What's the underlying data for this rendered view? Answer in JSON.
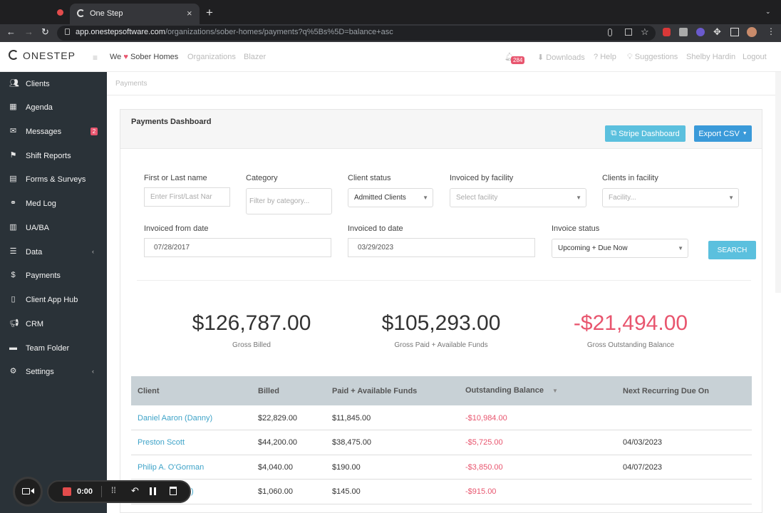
{
  "browser": {
    "tab_title": "One Step",
    "url_host": "app.onestepsoftware.com",
    "url_path": "/organizations/sober-homes/payments?q%5Bs%5D=balance+asc"
  },
  "header": {
    "logo": "ONESTEP",
    "org_prefix": "We",
    "org_name": "Sober Homes",
    "links": [
      "Organizations",
      "Blazer"
    ],
    "notification_count": "284",
    "right_links": [
      "Downloads",
      "Help",
      "Suggestions",
      "Shelby Hardin",
      "Logout"
    ]
  },
  "sidebar": {
    "items": [
      {
        "label": "Clients",
        "icon": "users-icon"
      },
      {
        "label": "Agenda",
        "icon": "calendar-icon"
      },
      {
        "label": "Messages",
        "icon": "envelope-icon",
        "badge": "2"
      },
      {
        "label": "Shift Reports",
        "icon": "flag-icon"
      },
      {
        "label": "Forms & Surveys",
        "icon": "file-icon"
      },
      {
        "label": "Med Log",
        "icon": "pills-icon"
      },
      {
        "label": "UA/BA",
        "icon": "cup-icon"
      },
      {
        "label": "Data",
        "icon": "database-icon",
        "arrow": true
      },
      {
        "label": "Payments",
        "icon": "dollar-icon"
      },
      {
        "label": "Client App Hub",
        "icon": "mobile-icon"
      },
      {
        "label": "CRM",
        "icon": "megaphone-icon"
      },
      {
        "label": "Team Folder",
        "icon": "folder-icon"
      },
      {
        "label": "Settings",
        "icon": "gear-icon",
        "arrow": true
      }
    ]
  },
  "breadcrumb": "Payments",
  "dashboard": {
    "title": "Payments Dashboard",
    "stripe_button": "Stripe Dashboard",
    "export_button": "Export CSV"
  },
  "filters": {
    "name_label": "First or Last name",
    "name_placeholder": "Enter First/Last Nar",
    "category_label": "Category",
    "category_placeholder": "Filter by category...",
    "client_status_label": "Client status",
    "client_status_value": "Admitted Clients",
    "invoiced_by_label": "Invoiced by facility",
    "invoiced_by_placeholder": "Select facility",
    "clients_in_label": "Clients in facility",
    "clients_in_placeholder": "Facility...",
    "from_label": "Invoiced from date",
    "from_value": "07/28/2017",
    "to_label": "Invoiced to date",
    "to_value": "03/29/2023",
    "invoice_status_label": "Invoice status",
    "invoice_status_value": "Upcoming + Due Now",
    "search_button": "SEARCH"
  },
  "stats": [
    {
      "value": "$126,787.00",
      "label": "Gross Billed"
    },
    {
      "value": "$105,293.00",
      "label": "Gross Paid + Available Funds"
    },
    {
      "value": "-$21,494.00",
      "label": "Gross Outstanding Balance"
    }
  ],
  "table": {
    "columns": [
      "Client",
      "Billed",
      "Paid + Available Funds",
      "Outstanding Balance",
      "Next Recurring Due On"
    ],
    "rows": [
      [
        "Daniel Aaron (Danny)",
        "$22,829.00",
        "$11,845.00",
        "-$10,984.00",
        ""
      ],
      [
        "Preston Scott",
        "$44,200.00",
        "$38,475.00",
        "-$5,725.00",
        "04/03/2023"
      ],
      [
        "Philip A. O'Gorman",
        "$4,040.00",
        "$190.00",
        "-$3,850.00",
        "04/07/2023"
      ],
      [
        ")",
        "$1,060.00",
        "$145.00",
        "-$915.00",
        ""
      ]
    ]
  },
  "recorder": {
    "time": "0:00"
  },
  "colors": {
    "sidebar_bg": "#2a3238",
    "accent_blue": "#3ea3c8",
    "negative_red": "#e8556e",
    "table_header": "#c8d1d6"
  }
}
